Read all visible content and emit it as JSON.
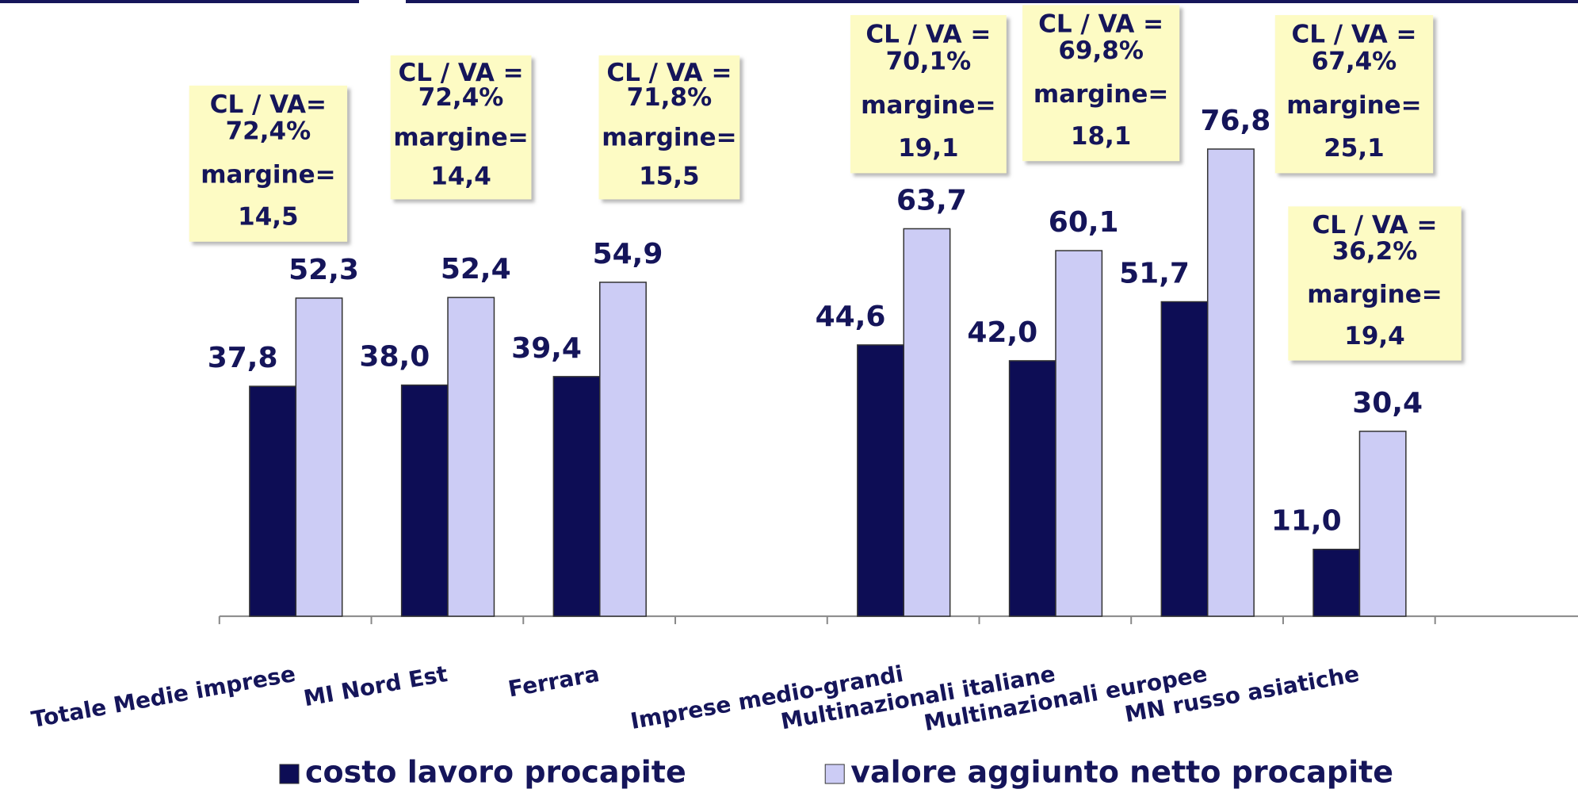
{
  "chart_data": {
    "type": "bar",
    "categories": [
      "Totale Medie imprese",
      "MI Nord Est",
      "Ferrara",
      null,
      "Imprese medio-grandi",
      "Multinazionali italiane",
      "Multinazionali europee",
      "MN russo asiatiche",
      null
    ],
    "series": [
      {
        "name": "costo lavoro procapite",
        "color": "#0d0d55",
        "values": [
          37.8,
          38.0,
          39.4,
          null,
          44.6,
          42.0,
          51.7,
          11.0,
          null
        ],
        "value_labels": [
          "37,8",
          "38,0",
          "39,4",
          null,
          "44,6",
          "42,0",
          "51,7",
          "11,0",
          null
        ]
      },
      {
        "name": "valore aggiunto netto procapite",
        "color": "#ccccf5",
        "values": [
          52.3,
          52.4,
          54.9,
          null,
          63.7,
          60.1,
          76.8,
          30.4,
          null
        ],
        "value_labels": [
          "52,3",
          "52,4",
          "54,9",
          null,
          "63,7",
          "60,1",
          "76,8",
          "30,4",
          null
        ]
      }
    ],
    "ylim": [
      0,
      100
    ],
    "annotations": [
      [
        "CL / VA=",
        "72,4%",
        "margine=",
        "14,5"
      ],
      [
        "CL / VA =",
        "72,4%",
        "margine=",
        "14,4"
      ],
      [
        "CL / VA =",
        "71,8%",
        "margine=",
        "15,5"
      ],
      [
        "CL / VA =",
        "70,1%",
        "margine=",
        "19,1"
      ],
      [
        "CL / VA =",
        "69,8%",
        "margine=",
        "18,1"
      ],
      [
        "CL / VA =",
        "67,4%",
        "margine=",
        "25,1"
      ],
      [
        "CL / VA =",
        "36,2%",
        "margine=",
        "19,4"
      ]
    ]
  }
}
